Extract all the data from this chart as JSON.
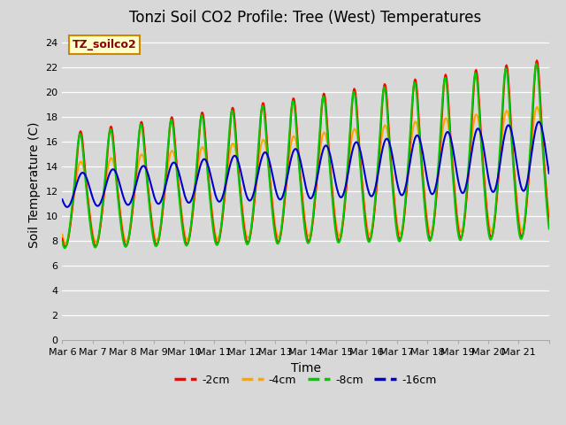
{
  "title": "Tonzi Soil CO2 Profile: Tree (West) Temperatures",
  "xlabel": "Time",
  "ylabel": "Soil Temperature (C)",
  "ylim": [
    0,
    25
  ],
  "yticks": [
    0,
    2,
    4,
    6,
    8,
    10,
    12,
    14,
    16,
    18,
    20,
    22,
    24
  ],
  "series_labels": [
    "-2cm",
    "-4cm",
    "-8cm",
    "-16cm"
  ],
  "series_colors": [
    "#ff0000",
    "#ffa500",
    "#00cc00",
    "#0000cc"
  ],
  "bg_color": "#d8d8d8",
  "grid_color": "#ffffff",
  "legend_box_label": "TZ_soilco2",
  "legend_box_facecolor": "#ffffcc",
  "legend_box_edgecolor": "#cc8800",
  "legend_text_color": "#8b0000",
  "title_fontsize": 12,
  "label_fontsize": 10,
  "tick_fontsize": 8,
  "legend_fontsize": 9,
  "line_width": 1.5,
  "n_days": 16,
  "date_labels": [
    "Mar 6",
    "Mar 7",
    "Mar 8",
    "Mar 9",
    "Mar 10",
    "Mar 11",
    "Mar 12",
    "Mar 13",
    "Mar 14",
    "Mar 15",
    "Mar 16",
    "Mar 17",
    "Mar 18",
    "Mar 19",
    "Mar 20",
    "Mar 21",
    ""
  ]
}
